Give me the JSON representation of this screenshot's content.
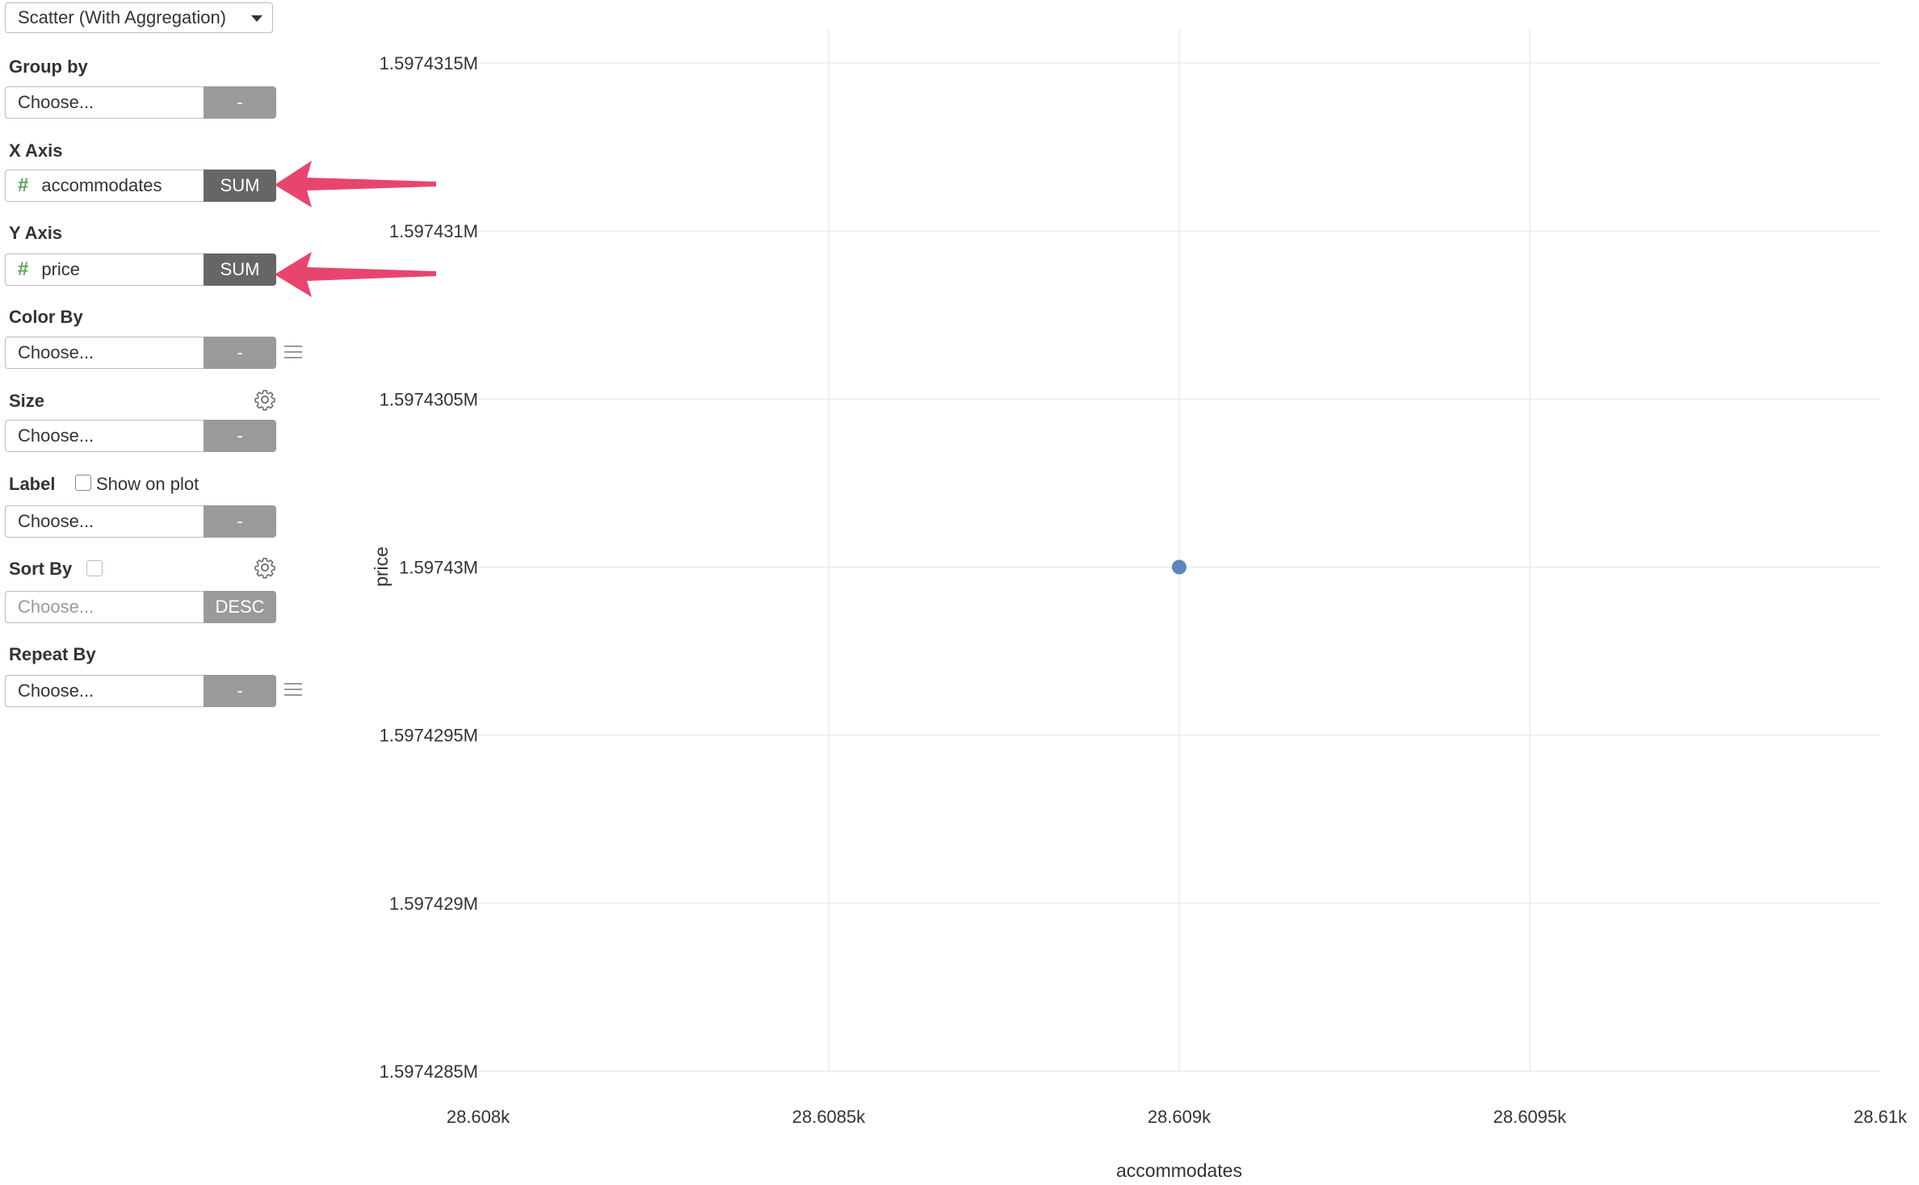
{
  "sidebar": {
    "chart_type": "Scatter (With Aggregation)",
    "group_by": {
      "label": "Group by",
      "value": "Choose...",
      "button": "-"
    },
    "x_axis": {
      "label": "X Axis",
      "value": "accommodates",
      "button": "SUM"
    },
    "y_axis": {
      "label": "Y Axis",
      "value": "price",
      "button": "SUM"
    },
    "color_by": {
      "label": "Color By",
      "value": "Choose...",
      "button": "-"
    },
    "size": {
      "label": "Size",
      "value": "Choose...",
      "button": "-"
    },
    "label": {
      "label": "Label",
      "checkbox_label": "Show on plot",
      "value": "Choose...",
      "button": "-"
    },
    "sort_by": {
      "label": "Sort By",
      "value": "Choose...",
      "button": "DESC"
    },
    "repeat_by": {
      "label": "Repeat By",
      "value": "Choose...",
      "button": "-"
    }
  },
  "colors": {
    "point": "#5b87c0",
    "arrow": "#e8456e",
    "hash": "#5aa55a"
  },
  "chart_data": {
    "type": "scatter",
    "xlabel": "accommodates",
    "ylabel": "price",
    "xlim": [
      28608,
      28610
    ],
    "ylim": [
      1597428.5,
      1597431.5
    ],
    "x_ticks": [
      {
        "value": 28608,
        "label": "28.608k"
      },
      {
        "value": 28608.5,
        "label": "28.6085k"
      },
      {
        "value": 28609,
        "label": "28.609k"
      },
      {
        "value": 28609.5,
        "label": "28.6095k"
      },
      {
        "value": 28610,
        "label": "28.61k"
      }
    ],
    "y_ticks": [
      {
        "value": 1597431.5,
        "label": "1.5974315M"
      },
      {
        "value": 1597431,
        "label": "1.597431M"
      },
      {
        "value": 1597430.5,
        "label": "1.5974305M"
      },
      {
        "value": 1597430,
        "label": "1.59743M"
      },
      {
        "value": 1597429.5,
        "label": "1.5974295M"
      },
      {
        "value": 1597429,
        "label": "1.597429M"
      },
      {
        "value": 1597428.5,
        "label": "1.5974285M"
      }
    ],
    "points": [
      {
        "x": 28609,
        "y": 1597430
      }
    ],
    "grid": true
  }
}
